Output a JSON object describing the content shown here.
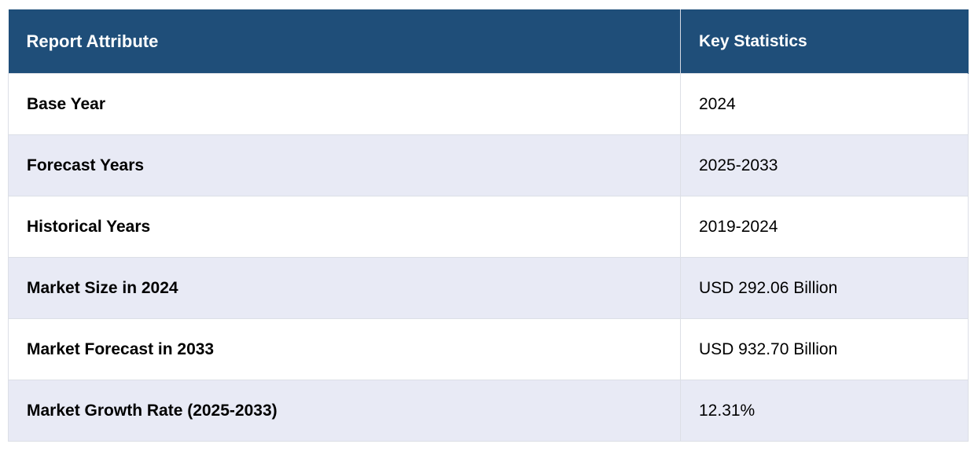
{
  "table": {
    "headers": [
      "Report Attribute",
      "Key Statistics"
    ],
    "rows": [
      {
        "attribute": "Base Year",
        "value": "2024"
      },
      {
        "attribute": "Forecast Years",
        "value": "2025-2033"
      },
      {
        "attribute": "Historical Years",
        "value": "2019-2024"
      },
      {
        "attribute": "Market Size in 2024",
        "value": "USD 292.06 Billion"
      },
      {
        "attribute": "Market Forecast in 2033",
        "value": "USD 932.70 Billion"
      },
      {
        "attribute": "Market Growth Rate (2025-2033)",
        "value": "12.31%"
      }
    ]
  },
  "colors": {
    "header_bg": "#1f4e79",
    "header_text": "#ffffff",
    "row_alt_bg": "#e8eaf5",
    "row_bg": "#ffffff"
  }
}
